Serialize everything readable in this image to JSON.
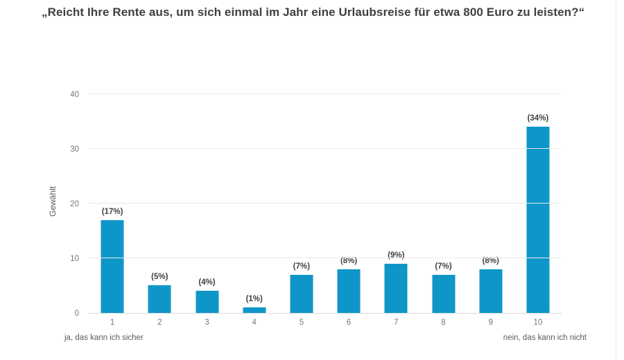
{
  "page": {
    "background": "#ffffff",
    "panel_border_color": "#e5e5e5"
  },
  "chart_data": {
    "type": "bar",
    "title": "„Reicht Ihre Rente aus, um sich einmal im Jahr eine Urlaubsreise für etwa 800 Euro zu leisten?“",
    "ylabel": "Gewählt",
    "xlabel": "",
    "categories": [
      "1",
      "2",
      "3",
      "4",
      "5",
      "6",
      "7",
      "8",
      "9",
      "10"
    ],
    "values": [
      17,
      5,
      4,
      1,
      7,
      8,
      9,
      7,
      8,
      34
    ],
    "bar_labels": [
      "(17%)",
      "(5%)",
      "(4%)",
      "(1%)",
      "(7%)",
      "(8%)",
      "(9%)",
      "(7%)",
      "(8%)",
      "(34%)"
    ],
    "yticks": [
      0,
      10,
      20,
      30,
      40
    ],
    "ylim": [
      0,
      43
    ],
    "grid": true,
    "legend": "none",
    "bar_color": "#0f96c8",
    "x_axis_note_left": "ja, das kann ich sicher",
    "x_axis_note_right": "nein, das kann ich nicht"
  }
}
